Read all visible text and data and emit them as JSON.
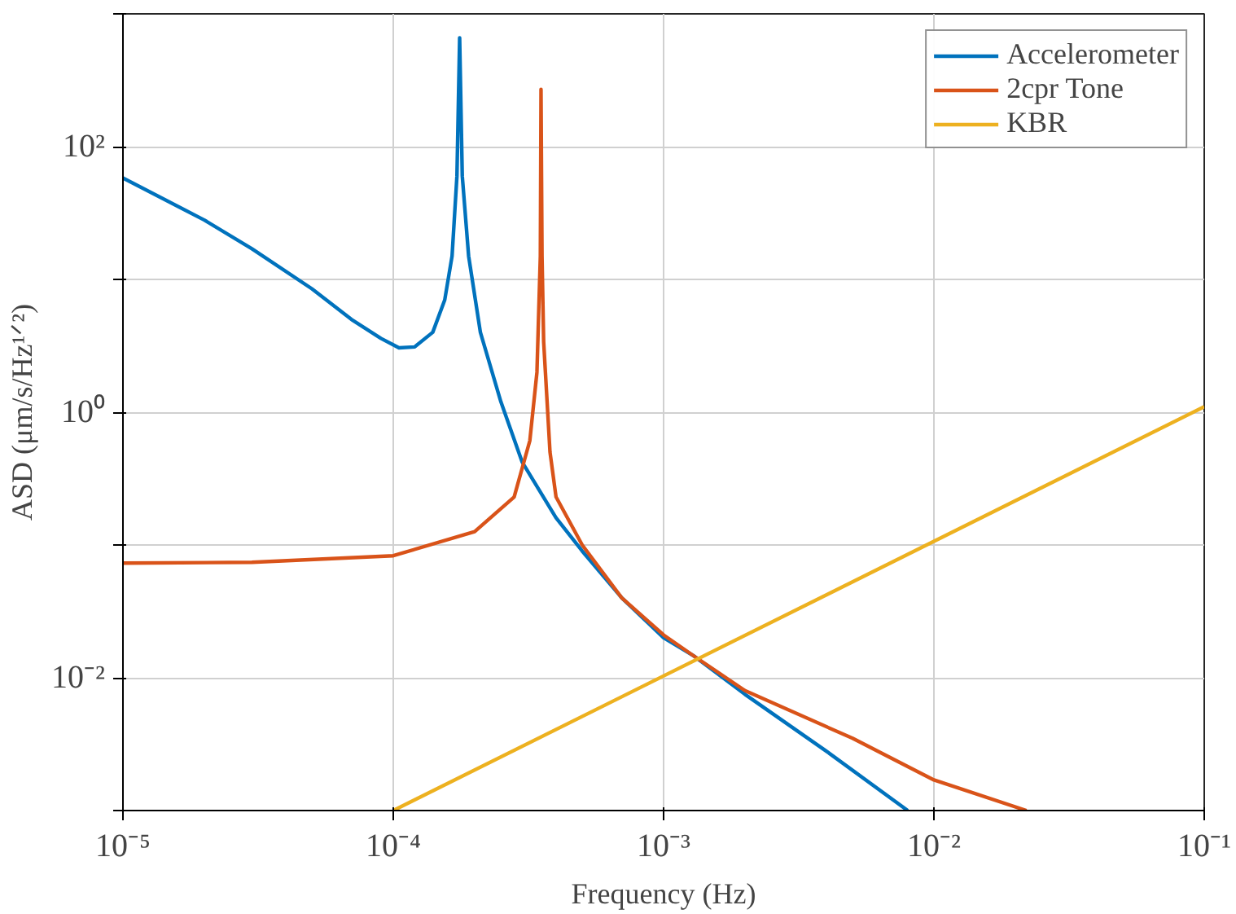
{
  "chart_data": {
    "type": "line",
    "xlabel": "Frequency (Hz)",
    "ylabel": "ASD (μm/s/Hz¹ᐟ²)",
    "log": "xy",
    "grid": true,
    "legend": "top right",
    "line_style": "solid",
    "xlim": [
      1e-05,
      0.1
    ],
    "ylim": [
      0.001,
      1000
    ],
    "xticks": [
      {
        "value": 1e-05,
        "label": "10⁻⁵"
      },
      {
        "value": 0.0001,
        "label": "10⁻⁴"
      },
      {
        "value": 0.001,
        "label": "10⁻³"
      },
      {
        "value": 0.01,
        "label": "10⁻²"
      },
      {
        "value": 0.1,
        "label": "10⁻¹"
      }
    ],
    "yticks": [
      {
        "value": 0.001,
        "label": null
      },
      {
        "value": 0.01,
        "label": "10⁻²"
      },
      {
        "value": 0.1,
        "label": null
      },
      {
        "value": 1,
        "label": "10⁰"
      },
      {
        "value": 10,
        "label": null
      },
      {
        "value": 100,
        "label": "10²"
      },
      {
        "value": 1000,
        "label": null
      }
    ],
    "series": [
      {
        "name": "Accelerometer",
        "color": "#0072bd",
        "x": [
          1e-05,
          2e-05,
          3e-05,
          5e-05,
          7e-05,
          9e-05,
          0.000105,
          0.00012,
          0.00014,
          0.000155,
          0.000165,
          0.000172,
          0.000176,
          0.00018,
          0.00019,
          0.00021,
          0.00025,
          0.0003,
          0.0004,
          0.0005,
          0.0007,
          0.001,
          0.0013,
          0.002,
          0.004,
          0.008
        ],
        "values": [
          58,
          28,
          17,
          8.5,
          5,
          3.6,
          3.05,
          3.1,
          4,
          7,
          15,
          60,
          660,
          60,
          15,
          4,
          1.2,
          0.42,
          0.16,
          0.09,
          0.04,
          0.02,
          0.0145,
          0.0075,
          0.0028,
          0.001
        ]
      },
      {
        "name": "2cpr Tone",
        "color": "#d95319",
        "x": [
          1e-05,
          3e-05,
          0.0001,
          0.0002,
          0.00028,
          0.00032,
          0.00034,
          0.00035,
          0.000352,
          0.000355,
          0.00036,
          0.00038,
          0.0004,
          0.0005,
          0.0007,
          0.001,
          0.0013,
          0.002,
          0.005,
          0.01,
          0.022
        ],
        "values": [
          0.073,
          0.074,
          0.083,
          0.126,
          0.23,
          0.61,
          2,
          15,
          270,
          15,
          3.4,
          0.5,
          0.23,
          0.1,
          0.04,
          0.021,
          0.0145,
          0.008,
          0.0035,
          0.0017,
          0.001
        ]
      },
      {
        "name": "KBR",
        "color": "#edb120",
        "x": [
          0.0001,
          0.1
        ],
        "values": [
          0.001,
          1.1
        ]
      }
    ]
  }
}
